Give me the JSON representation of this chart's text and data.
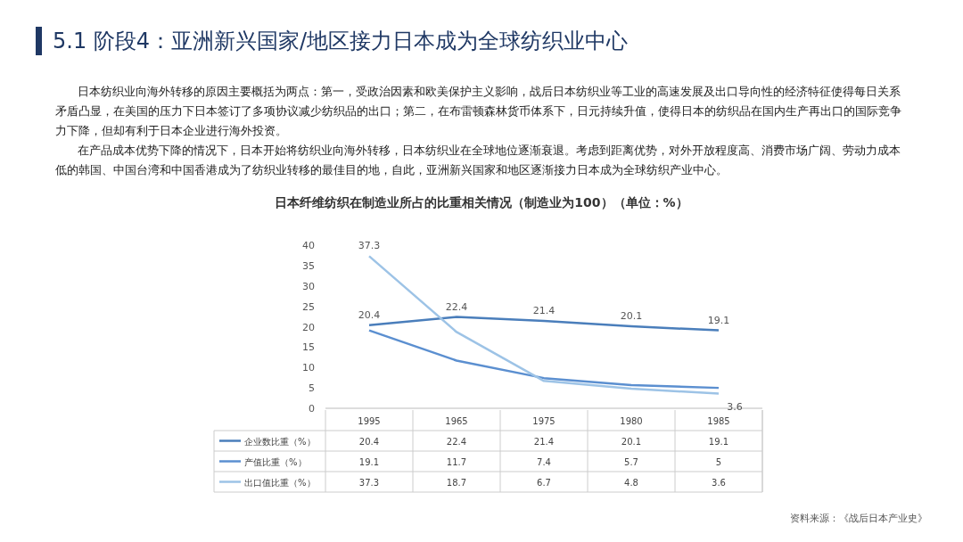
{
  "chart_data": {
    "type": "line",
    "title": "日本纤维纺织在制造业所占的比重相关情况（制造业为100）（单位：%）",
    "annotations": [
      "5.1 阶段4：亚洲新兴国家/地区接力日本成为全球纺织业中心",
      "日本纺织业向海外转移的原因主要概括为两点：第一，受政治因素和欧美保护主义影响，战后日本纺织业等工业的高速发展及出口导向性的经济特征使得每日关系矛盾凸显，在美国的压力下日本签订了多项协议减少纺织品的出口；第二，在布雷顿森林货币体系下，日元持续升值，使得日本的纺织品在国内生产再出口的国际竞争力下降，但却有利于日本企业进行海外投资。",
      "在产品成本优势下降的情况下，日本开始将纺织业向海外转移，日本纺织业在全球地位逐渐衰退。考虑到距离优势，对外开放程度高、消费市场广阔、劳动力成本低的韩国、中国台湾和中国香港成为了纺织业转移的最佳目的地，自此，亚洲新兴国家和地区逐渐接力日本成为全球纺织产业中心。",
      "资料来源：《战后日本产业史》",
      {
        "text": "20.4",
        "x": "1995",
        "y": 20.4
      },
      {
        "text": "22.4",
        "x": "1965",
        "y": 22.4
      },
      {
        "text": "21.4",
        "x": "1975",
        "y": 21.4
      },
      {
        "text": "20.1",
        "x": "1980",
        "y": 20.1
      },
      {
        "text": "19.1",
        "x": "1985",
        "y": 19.1
      },
      {
        "text": "37.3",
        "x": "1995",
        "y": 37.3
      },
      {
        "text": "3.6",
        "x": "1985",
        "y": 3.6
      }
    ],
    "categories": [
      "1995",
      "1965",
      "1975",
      "1980",
      "1985"
    ],
    "series": [
      {
        "name": "企业数比重（%）",
        "color": "#4a7ebb",
        "values": [
          20.4,
          22.4,
          21.4,
          20.1,
          19.1
        ]
      },
      {
        "name": "产值比重（%）",
        "color": "#5b8fd0",
        "values": [
          19.1,
          11.7,
          7.4,
          5.7,
          5
        ]
      },
      {
        "name": "出口值比重（%）",
        "color": "#9dc3e6",
        "values": [
          37.3,
          18.7,
          6.7,
          4.8,
          3.6
        ]
      }
    ],
    "ylim": [
      0,
      40
    ],
    "yticks": [
      0,
      5,
      10,
      15,
      20,
      25,
      30,
      35,
      40
    ],
    "grid": false,
    "legend": "bottom",
    "data_labels": true,
    "marker": "none",
    "line_style": "solid"
  }
}
